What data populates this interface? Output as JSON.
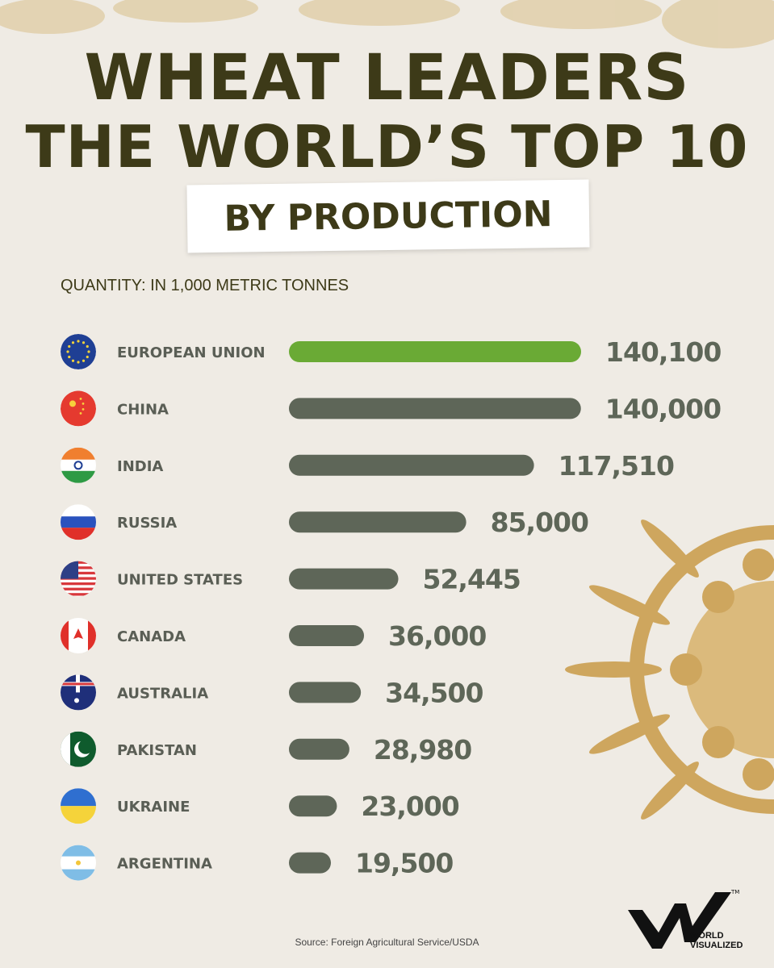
{
  "header": {
    "title_line1": "WHEAT LEADERS",
    "title_line2": "THE WORLD’S TOP 10",
    "title_line3": "BY PRODUCTION",
    "subtitle": "QUANTITY: IN 1,000 METRIC TONNES"
  },
  "chart_data": {
    "type": "bar",
    "orientation": "horizontal",
    "title": "WHEAT LEADERS THE WORLD’S TOP 10 BY PRODUCTION",
    "xlabel": "QUANTITY: IN 1,000 METRIC TONNES",
    "categories": [
      "EUROPEAN UNION",
      "CHINA",
      "INDIA",
      "RUSSIA",
      "UNITED STATES",
      "CANADA",
      "AUSTRALIA",
      "PAKISTAN",
      "UKRAINE",
      "ARGENTINA"
    ],
    "values": [
      140100,
      140000,
      117510,
      85000,
      52445,
      36000,
      34500,
      28980,
      23000,
      19500
    ],
    "value_labels": [
      "140,100",
      "140,000",
      "117,510",
      "85,000",
      "52,445",
      "36,000",
      "34,500",
      "28,980",
      "23,000",
      "19,500"
    ],
    "flags": [
      "eu-flag-icon",
      "china-flag-icon",
      "india-flag-icon",
      "russia-flag-icon",
      "usa-flag-icon",
      "canada-flag-icon",
      "australia-flag-icon",
      "pakistan-flag-icon",
      "ukraine-flag-icon",
      "argentina-flag-icon"
    ],
    "colors": {
      "highlight": "#6aaa35",
      "bar": "#5e6658",
      "label": "#5a5e55"
    },
    "grid": false
  },
  "footer": {
    "source": "Source: Foreign Agricultural Service/USDA",
    "logo_text": "WORLD VISUALIZED"
  }
}
